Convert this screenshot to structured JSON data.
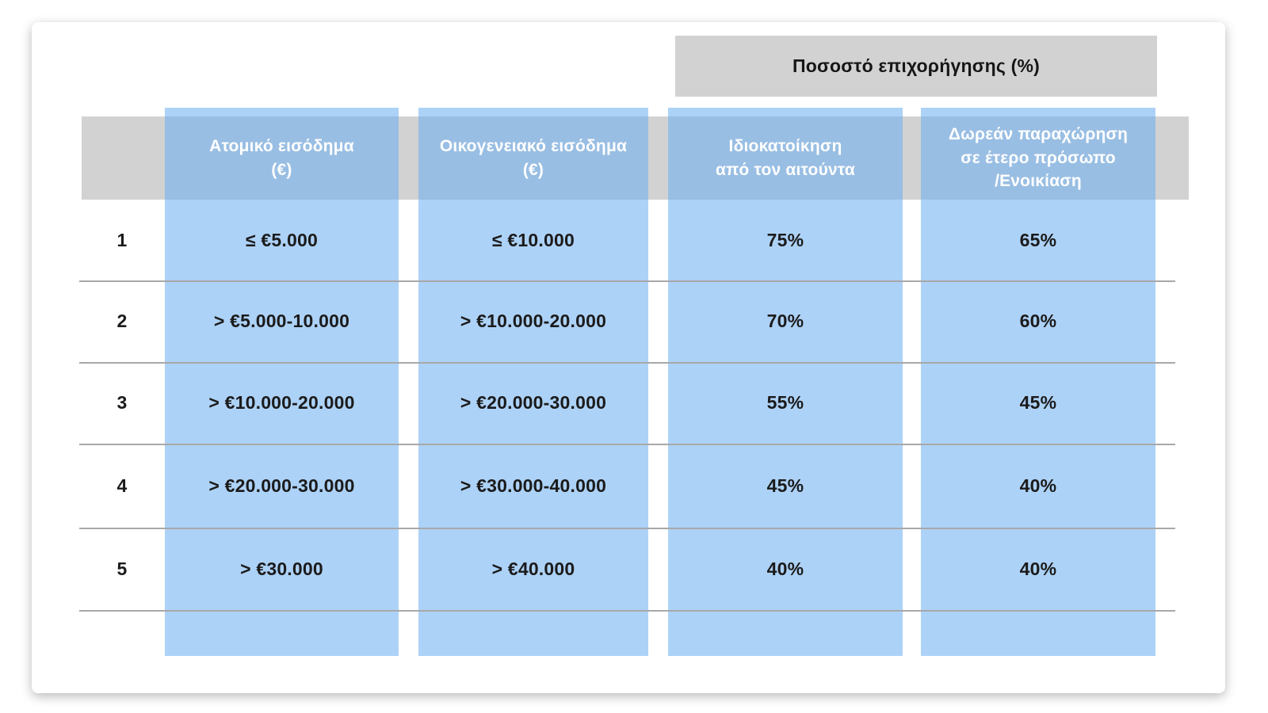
{
  "table": {
    "span_header": "Ποσοστό επιχορήγησης (%)",
    "columns": [
      {
        "label": "Ατομικό εισόδημα\n(€)"
      },
      {
        "label": "Οικογενειακό εισόδημα\n(€)"
      },
      {
        "label": "Ιδιοκατοίκηση\nαπό τον αιτούντα"
      },
      {
        "label": "Δωρεάν παραχώρηση\nσε έτερο πρόσωπο\n/Ενοικίαση"
      }
    ],
    "rows": [
      {
        "num": "1",
        "values": [
          "≤ €5.000",
          "≤ €10.000",
          "75%",
          "65%"
        ]
      },
      {
        "num": "2",
        "values": [
          "> €5.000-10.000",
          "> €10.000-20.000",
          "70%",
          "60%"
        ]
      },
      {
        "num": "3",
        "values": [
          "> €10.000-20.000",
          "> €20.000-30.000",
          "55%",
          "45%"
        ]
      },
      {
        "num": "4",
        "values": [
          "> €20.000-30.000",
          "> €30.000-40.000",
          "45%",
          "40%"
        ]
      },
      {
        "num": "5",
        "values": [
          "> €30.000",
          "> €40.000",
          "40%",
          "40%"
        ]
      }
    ],
    "colors": {
      "column_highlight_blue": "#aed2f7",
      "header_band_gray": "#d2d2d2",
      "separator_gray": "#a8a8a8",
      "header_text": "#ffffff",
      "body_text": "#1b1b1b"
    }
  },
  "chart_data": {
    "type": "table",
    "title": "Ποσοστό επιχορήγησης (%)",
    "title_spans_columns": [
      "Ιδιοκατοίκηση από τον αιτούντα",
      "Δωρεάν παραχώρηση σε έτερο πρόσωπο /Ενοικίαση"
    ],
    "columns": [
      "",
      "Ατομικό εισόδημα (€)",
      "Οικογενειακό εισόδημα (€)",
      "Ιδιοκατοίκηση από τον αιτούντα",
      "Δωρεάν παραχώρηση σε έτερο πρόσωπο /Ενοικίαση"
    ],
    "rows": [
      [
        "1",
        "≤ €5.000",
        "≤ €10.000",
        "75%",
        "65%"
      ],
      [
        "2",
        "> €5.000-10.000",
        "> €10.000-20.000",
        "70%",
        "60%"
      ],
      [
        "3",
        "> €10.000-20.000",
        "> €20.000-30.000",
        "55%",
        "45%"
      ],
      [
        "4",
        "> €20.000-30.000",
        "> €30.000-40.000",
        "45%",
        "40%"
      ],
      [
        "5",
        "> €30.000",
        "> €40.000",
        "40%",
        "40%"
      ]
    ],
    "subsidy_percent_by_row": {
      "idiokatoikisi_apo_ton_aitounta": [
        75,
        70,
        55,
        45,
        40
      ],
      "dorean_parachorisi_enoikiasi": [
        65,
        60,
        45,
        40,
        40
      ]
    }
  }
}
